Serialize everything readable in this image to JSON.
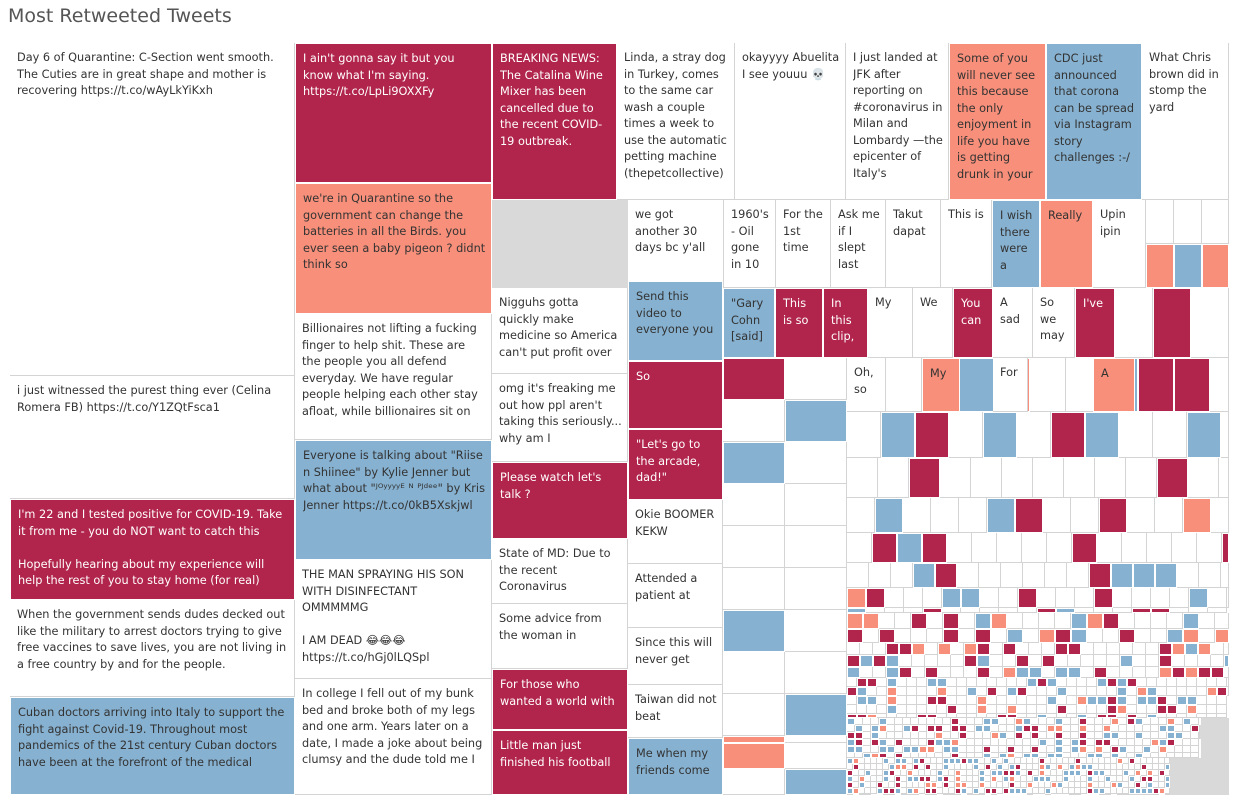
{
  "chart_data": {
    "type": "treemap",
    "title": "Most Retweeted Tweets",
    "palette": {
      "white": "#ffffff",
      "red": "#b1244b",
      "salmon": "#f78f7a",
      "blue": "#86b1d0",
      "filler": "#d9d9d9"
    },
    "tiles": [
      {
        "text": "Day 6 of Quarantine: C-Section went smooth. The Cuties are in great shape and mother is recovering https://t.co/wAyLkYiKxh",
        "color": "white"
      },
      {
        "text": "i just witnessed the purest thing ever (Celina Romera FB) https://t.co/Y1ZQtFsca1",
        "color": "white"
      },
      {
        "text": "I'm 22 and I tested positive for COVID-19. Take it from me - you do NOT want to catch this\n\nHopefully hearing about my experience will help the rest of you to stay home (for real)",
        "color": "red"
      },
      {
        "text": "When the government sends dudes decked out like the military to arrest doctors trying to give free vaccines to save lives, you are not living in a free country by and for the people.",
        "color": "white"
      },
      {
        "text": "Cuban doctors arriving into Italy to support the fight against Covid-19. Throughout most pandemics of the 21st century Cuban doctors have been at the forefront of the medical",
        "color": "blue"
      },
      {
        "text": "I ain't gonna say it but you know what I'm saying. https://t.co/LpLi9OXXFy",
        "color": "red"
      },
      {
        "text": "we're in Quarantine so the government can change the batteries in all the Birds. you ever seen a baby pigeon ? didnt think so",
        "color": "salmon"
      },
      {
        "text": "Billionaires not lifting a fucking finger to help shit. These are the people you all defend everyday. We have regular people helping each other stay afloat, while billionaires sit on",
        "color": "white"
      },
      {
        "text": "Everyone is talking about \"Riise n Shiinee\" by Kylie Jenner but what about \"ᴶᴼʸʸʸʸᴱ ᴺ ᴾᴶᵈᵉᵉ\" by Kris Jenner https://t.co/0kB5Xskjwl",
        "color": "blue"
      },
      {
        "text": "THE MAN SPRAYING HIS SON WITH DISINFECTANT OMMMMMG\n\nI AM DEAD 😂😂😂 https://t.co/hGj0lLQSpl",
        "color": "white"
      },
      {
        "text": "In college I fell out of my bunk bed and broke both of my legs and one arm. Years later on a date, I made a joke about being clumsy and the dude told me I",
        "color": "white"
      },
      {
        "text": "BREAKING NEWS: The Catalina Wine Mixer has been cancelled due to the recent COVID-19 outbreak.",
        "color": "red"
      },
      {
        "text": "Linda, a stray dog in Turkey, comes to the same car wash a couple times a week to use the automatic petting machine (thepetcollective)",
        "color": "white"
      },
      {
        "text": "okayyyy Abuelita I see youuu 💀",
        "color": "white"
      },
      {
        "text": "I just landed at JFK after reporting on #coronavirus in Milan and Lombardy —the epicenter of Italy's",
        "color": "white"
      },
      {
        "text": "Some of you will never see this because the only enjoyment in life you have is getting drunk in your",
        "color": "salmon"
      },
      {
        "text": "CDC just announced that corona can be spread via Instagram story challenges :-/",
        "color": "blue"
      },
      {
        "text": "What Chris brown did in stomp the yard",
        "color": "white"
      },
      {
        "text": "Nigguhs gotta quickly make medicine so America can't put profit over",
        "color": "white"
      },
      {
        "text": "omg it's freaking me out how ppl aren't taking this seriously... why am I",
        "color": "white"
      },
      {
        "text": "Please watch let's talk ?",
        "color": "red"
      },
      {
        "text": "State of MD: Due to the recent Coronavirus",
        "color": "white"
      },
      {
        "text": "Some advice from the woman in",
        "color": "white"
      },
      {
        "text": "For those who wanted a world with",
        "color": "red"
      },
      {
        "text": "Little man just finished his football",
        "color": "red"
      },
      {
        "text": "we got another 30 days bc y'all",
        "color": "white"
      },
      {
        "text": "1960's - Oil gone in 10",
        "color": "white"
      },
      {
        "text": "For the 1st time",
        "color": "white"
      },
      {
        "text": "Ask me if I slept last",
        "color": "white"
      },
      {
        "text": "Takut dapat",
        "color": "white"
      },
      {
        "text": "This is",
        "color": "white"
      },
      {
        "text": "I wish there were a",
        "color": "blue"
      },
      {
        "text": "Really",
        "color": "salmon"
      },
      {
        "text": "Upin ipin",
        "color": "white"
      },
      {
        "text": "Send this video to everyone you",
        "color": "blue"
      },
      {
        "text": "So",
        "color": "red"
      },
      {
        "text": "\"Let's go to the arcade, dad!\"",
        "color": "red"
      },
      {
        "text": "Okie BOOMER KEKW",
        "color": "white"
      },
      {
        "text": "Attended a patient at",
        "color": "white"
      },
      {
        "text": "Since this will never get",
        "color": "white"
      },
      {
        "text": "Taiwan did not beat",
        "color": "white"
      },
      {
        "text": "Me when my friends come",
        "color": "blue"
      },
      {
        "text": "\"Gary Cohn [said]",
        "color": "blue"
      },
      {
        "text": "This is so",
        "color": "red"
      },
      {
        "text": "In this clip,",
        "color": "red"
      },
      {
        "text": "My",
        "color": "white"
      },
      {
        "text": "We",
        "color": "white"
      },
      {
        "text": "You can",
        "color": "red"
      },
      {
        "text": "A sad",
        "color": "white"
      },
      {
        "text": "So we may",
        "color": "white"
      },
      {
        "text": "I've",
        "color": "red"
      },
      {
        "text": "Oh, so",
        "color": "white"
      },
      {
        "text": "My",
        "color": "salmon"
      },
      {
        "text": "For",
        "color": "white"
      },
      {
        "text": "A",
        "color": "salmon"
      }
    ]
  }
}
